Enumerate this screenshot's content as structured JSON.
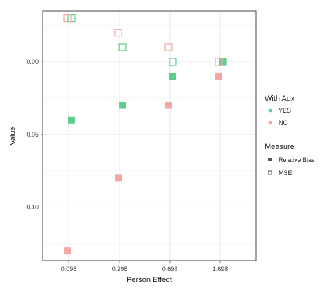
{
  "chart_data": {
    "type": "scatter",
    "xlabel": "Person Effect",
    "ylabel": "Value",
    "categories": [
      "0.098",
      "0.298",
      "0.698",
      "1.698"
    ],
    "ylim": [
      -0.137,
      0.035
    ],
    "yticks": [
      0.0,
      -0.05,
      -0.1
    ],
    "ytick_labels": [
      "0.00",
      "-0.05",
      "-0.10"
    ],
    "grid": true,
    "legend_position": "right",
    "colors": {
      "YES": "#5cd08b",
      "NO": "#f4a6a0"
    },
    "series": [
      {
        "name": "YES",
        "measure": "Relative Bias",
        "values": [
          -0.04,
          -0.03,
          -0.01,
          0.0
        ]
      },
      {
        "name": "NO",
        "measure": "Relative Bias",
        "values": [
          -0.13,
          -0.08,
          -0.03,
          -0.01
        ]
      },
      {
        "name": "YES",
        "measure": "MSE",
        "values": [
          0.03,
          0.01,
          0.0,
          0.0
        ]
      },
      {
        "name": "NO",
        "measure": "MSE",
        "values": [
          0.03,
          0.02,
          0.01,
          0.0
        ]
      }
    ],
    "legend": {
      "aux_title": "With Aux",
      "aux_items": [
        "YES",
        "NO"
      ],
      "measure_title": "Measure",
      "measure_items": [
        "Relative Bias",
        "MSE"
      ]
    }
  }
}
